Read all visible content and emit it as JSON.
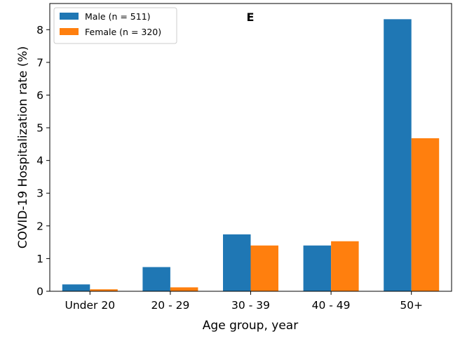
{
  "chart_data": {
    "type": "bar",
    "title": "E",
    "xlabel": "Age group, year",
    "ylabel": "COVID-19 Hospitalization rate (%)",
    "categories": [
      "Under 20",
      "20 - 29",
      "30 - 39",
      "40 - 49",
      "50+"
    ],
    "series": [
      {
        "name": "Male (n = 511)",
        "color": "#1f77b4",
        "values": [
          0.21,
          0.74,
          1.74,
          1.4,
          8.32
        ]
      },
      {
        "name": "Female (n = 320)",
        "color": "#ff7f0e",
        "values": [
          0.06,
          0.12,
          1.4,
          1.53,
          4.68
        ]
      }
    ],
    "ylim": [
      0,
      8.8
    ],
    "yticks": [
      "0",
      "1",
      "2",
      "3",
      "4",
      "5",
      "6",
      "7",
      "8"
    ],
    "grid": false,
    "legend_position": "top-left"
  }
}
